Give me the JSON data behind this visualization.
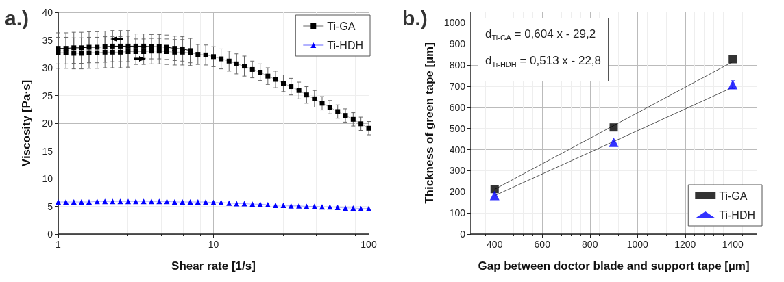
{
  "chart_data": [
    {
      "type": "line",
      "title": "a.)",
      "xlabel": "Shear rate [1/s]",
      "ylabel": "Viscosity [Pa·s]",
      "log": "x",
      "grid": true,
      "legend": "top right",
      "x": [
        1,
        1.12,
        1.26,
        1.41,
        1.58,
        1.78,
        2,
        2.24,
        2.51,
        2.82,
        3.16,
        3.55,
        3.98,
        4.47,
        5.01,
        5.62,
        6.31,
        7.08,
        7.94,
        8.91,
        10,
        11.2,
        12.6,
        14.1,
        15.8,
        17.8,
        20,
        22.4,
        25.1,
        28.2,
        31.6,
        35.5,
        39.8,
        44.7,
        50.1,
        56.2,
        63.1,
        70.8,
        79.4,
        89.1,
        100
      ],
      "xlim": [
        1,
        100
      ],
      "xticks": [
        1,
        10,
        100
      ],
      "ylim": [
        0,
        40
      ],
      "yticks": [
        0,
        5,
        10,
        15,
        20,
        25,
        30,
        35,
        40
      ],
      "series": [
        {
          "name": "Ti-GA",
          "color": "#000000",
          "marker": "square",
          "values": [
            32.7,
            32.7,
            32.6,
            32.6,
            32.7,
            32.7,
            32.8,
            32.8,
            32.8,
            32.9,
            32.9,
            32.9,
            33.0,
            33.0,
            32.9,
            32.8,
            32.8,
            32.7,
            32.4,
            32.3,
            32.0,
            31.6,
            31.2,
            30.7,
            30.3,
            29.7,
            29.2,
            28.5,
            27.9,
            27.2,
            26.6,
            25.9,
            25.1,
            24.4,
            23.6,
            22.9,
            22.1,
            21.4,
            20.7,
            19.9,
            19.1
          ],
          "errors": [
            2.8,
            2.8,
            2.8,
            2.8,
            2.8,
            2.8,
            2.8,
            2.8,
            2.8,
            2.8,
            2.3,
            2.3,
            2.3,
            2.3,
            2.3,
            2.3,
            2.3,
            2.3,
            1.8,
            1.8,
            1.8,
            1.8,
            1.8,
            1.8,
            1.8,
            1.5,
            1.5,
            1.5,
            1.5,
            1.5,
            1.5,
            1.5,
            1.5,
            1.5,
            1.2,
            1.2,
            1.2,
            1.2,
            1.2,
            1.2,
            1.2
          ]
        },
        {
          "color": "#000000",
          "marker": "square",
          "x": [
            1,
            1.12,
            1.26,
            1.41,
            1.58,
            1.78,
            2,
            2.24,
            2.51,
            2.82,
            3.16,
            3.55,
            3.98,
            4.47,
            5.01,
            5.62,
            6.31,
            7.08
          ],
          "values": [
            33.5,
            33.5,
            33.6,
            33.6,
            33.7,
            33.7,
            33.8,
            33.9,
            33.9,
            33.9,
            33.9,
            33.9,
            33.8,
            33.8,
            33.7,
            33.5,
            33.4,
            33.1
          ],
          "errors": [
            2.8,
            2.8,
            2.8,
            2.8,
            2.8,
            2.8,
            2.8,
            2.8,
            2.8,
            2.8,
            2.2,
            2.2,
            2.2,
            2.2,
            2.2,
            2.2,
            2.2,
            2.2
          ]
        },
        {
          "name": "Ti-HDH",
          "color": "#0000ff",
          "marker": "triangle",
          "values": [
            5.8,
            5.8,
            5.8,
            5.8,
            5.8,
            5.9,
            5.9,
            5.9,
            5.9,
            5.9,
            5.9,
            5.9,
            5.9,
            5.9,
            5.9,
            5.8,
            5.8,
            5.8,
            5.8,
            5.8,
            5.7,
            5.7,
            5.6,
            5.5,
            5.5,
            5.4,
            5.4,
            5.3,
            5.2,
            5.2,
            5.1,
            5.1,
            5.0,
            5.0,
            4.9,
            4.9,
            4.8,
            4.7,
            4.7,
            4.6,
            4.6
          ]
        }
      ]
    },
    {
      "type": "scatter",
      "title": "b.)",
      "xlabel": "Gap between doctor blade and support tape [µm]",
      "ylabel": "Thickness of green tape [µm]",
      "grid": true,
      "legend": "bottom right",
      "x": [
        400,
        900,
        1400
      ],
      "xlim": [
        300,
        1500
      ],
      "xticks": [
        400,
        600,
        800,
        1000,
        1200,
        1400
      ],
      "ylim": [
        0,
        1050
      ],
      "yticks": [
        0,
        100,
        200,
        300,
        400,
        500,
        600,
        700,
        800,
        900,
        1000
      ],
      "annotations": [
        "d$_{Ti-GA}$ = 0,604 x - 29,2",
        "d$_{Ti-HDH}$ = 0,513 x - 22,8"
      ],
      "series": [
        {
          "name": "Ti-GA",
          "color": "#000000",
          "marker": "square",
          "values": [
            213,
            505,
            828
          ]
        },
        {
          "name": "Ti-HDH",
          "color": "#0000ff",
          "marker": "triangle",
          "values": [
            183,
            435,
            708
          ],
          "errors": [
            null,
            null,
            18
          ]
        },
        {
          "type": "line",
          "color": "#555555",
          "marker": "none",
          "x": [
            400,
            1400
          ],
          "values": [
            212,
            816
          ]
        },
        {
          "type": "line",
          "color": "#555555",
          "marker": "none",
          "x": [
            400,
            1400
          ],
          "values": [
            182,
            695
          ]
        }
      ]
    }
  ]
}
